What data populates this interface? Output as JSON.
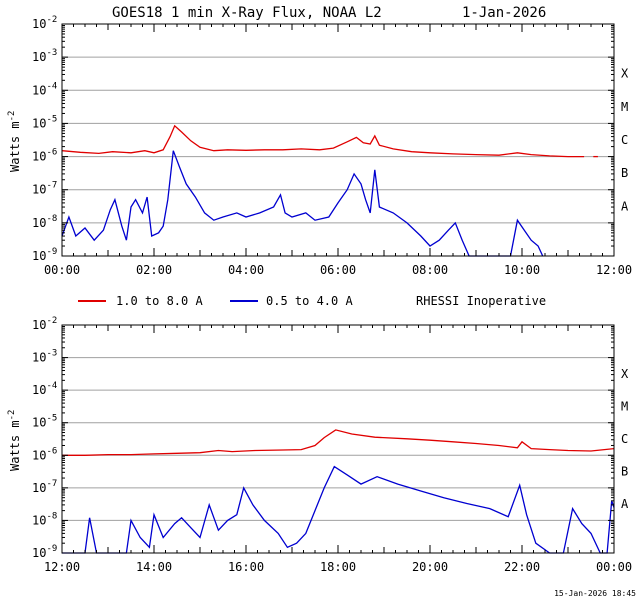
{
  "figure": {
    "title": "GOES18 1 min X-Ray Flux, NOAA L2",
    "date": "1-Jan-2026",
    "footer": "15-Jan-2026 18:45",
    "ylabel_main": "Watts m",
    "ylabel_exp": "-2",
    "legend": {
      "long_label": "1.0 to 8.0 A",
      "short_label": "0.5 to 4.0 A",
      "note": "RHESSI Inoperative"
    },
    "colors": {
      "long": "#e00000",
      "short": "#0000d0",
      "grid": "#a0a0a0",
      "frame": "#000000"
    }
  },
  "chart_data": [
    {
      "type": "line",
      "title": "GOES18 1 min X-Ray Flux, NOAA L2",
      "ylabel": "Watts m-2",
      "yscale": "log",
      "ylim": [
        1e-09,
        0.01
      ],
      "xlim": [
        0,
        12
      ],
      "x_ticks": [
        0,
        2,
        4,
        6,
        8,
        10,
        12
      ],
      "x_tick_labels": [
        "00:00",
        "02:00",
        "04:00",
        "06:00",
        "08:00",
        "10:00",
        "12:00"
      ],
      "y_tick_mantissa": [
        "10",
        "10",
        "10",
        "10",
        "10",
        "10",
        "10",
        "10"
      ],
      "y_tick_exponents": [
        "-9",
        "-8",
        "-7",
        "-6",
        "-5",
        "-4",
        "-3",
        "-2"
      ],
      "flare_classes": [
        "A",
        "B",
        "C",
        "M",
        "X"
      ],
      "grid": true,
      "series": [
        {
          "name": "1.0 to 8.0 A",
          "color": "#e00000",
          "points": [
            [
              0.0,
              1.5e-06
            ],
            [
              0.4,
              1.35e-06
            ],
            [
              0.8,
              1.25e-06
            ],
            [
              1.1,
              1.4e-06
            ],
            [
              1.5,
              1.3e-06
            ],
            [
              1.8,
              1.5e-06
            ],
            [
              2.0,
              1.3e-06
            ],
            [
              2.2,
              1.6e-06
            ],
            [
              2.35,
              4e-06
            ],
            [
              2.45,
              8.5e-06
            ],
            [
              2.6,
              5.5e-06
            ],
            [
              2.8,
              3e-06
            ],
            [
              3.0,
              1.9e-06
            ],
            [
              3.3,
              1.5e-06
            ],
            [
              3.6,
              1.6e-06
            ],
            [
              4.0,
              1.55e-06
            ],
            [
              4.4,
              1.6e-06
            ],
            [
              4.8,
              1.6e-06
            ],
            [
              5.2,
              1.7e-06
            ],
            [
              5.6,
              1.6e-06
            ],
            [
              5.9,
              1.8e-06
            ],
            [
              6.2,
              2.8e-06
            ],
            [
              6.4,
              3.8e-06
            ],
            [
              6.55,
              2.6e-06
            ],
            [
              6.7,
              2.4e-06
            ],
            [
              6.8,
              4.2e-06
            ],
            [
              6.9,
              2.2e-06
            ],
            [
              7.2,
              1.7e-06
            ],
            [
              7.6,
              1.4e-06
            ],
            [
              8.0,
              1.3e-06
            ],
            [
              8.5,
              1.2e-06
            ],
            [
              9.0,
              1.15e-06
            ],
            [
              9.5,
              1.1e-06
            ],
            [
              9.9,
              1.3e-06
            ],
            [
              10.2,
              1.15e-06
            ],
            [
              10.6,
              1.05e-06
            ],
            [
              11.0,
              1e-06
            ],
            [
              11.35,
              1e-06
            ],
            [
              11.4,
              null
            ],
            [
              11.55,
              1e-06
            ],
            [
              11.65,
              1e-06
            ]
          ]
        },
        {
          "name": "0.5 to 4.0 A",
          "color": "#0000d0",
          "points": [
            [
              0.0,
              4e-09
            ],
            [
              0.15,
              1.5e-08
            ],
            [
              0.3,
              4e-09
            ],
            [
              0.5,
              7e-09
            ],
            [
              0.7,
              3e-09
            ],
            [
              0.9,
              6e-09
            ],
            [
              1.05,
              2.5e-08
            ],
            [
              1.15,
              5e-08
            ],
            [
              1.3,
              8e-09
            ],
            [
              1.4,
              3e-09
            ],
            [
              1.5,
              3e-08
            ],
            [
              1.6,
              5e-08
            ],
            [
              1.75,
              2e-08
            ],
            [
              1.85,
              6e-08
            ],
            [
              1.95,
              4e-09
            ],
            [
              2.1,
              5e-09
            ],
            [
              2.2,
              8e-09
            ],
            [
              2.3,
              5e-08
            ],
            [
              2.42,
              1.5e-06
            ],
            [
              2.55,
              5e-07
            ],
            [
              2.7,
              1.5e-07
            ],
            [
              2.9,
              6e-08
            ],
            [
              3.1,
              2e-08
            ],
            [
              3.3,
              1.2e-08
            ],
            [
              3.5,
              1.5e-08
            ],
            [
              3.8,
              2e-08
            ],
            [
              4.0,
              1.5e-08
            ],
            [
              4.3,
              2e-08
            ],
            [
              4.6,
              3e-08
            ],
            [
              4.75,
              7e-08
            ],
            [
              4.85,
              2e-08
            ],
            [
              5.0,
              1.5e-08
            ],
            [
              5.3,
              2e-08
            ],
            [
              5.5,
              1.2e-08
            ],
            [
              5.8,
              1.5e-08
            ],
            [
              6.0,
              4e-08
            ],
            [
              6.2,
              1e-07
            ],
            [
              6.35,
              3e-07
            ],
            [
              6.5,
              1.5e-07
            ],
            [
              6.6,
              5e-08
            ],
            [
              6.7,
              2e-08
            ],
            [
              6.8,
              4e-07
            ],
            [
              6.9,
              3e-08
            ],
            [
              7.2,
              2e-08
            ],
            [
              7.5,
              1e-08
            ],
            [
              7.8,
              4e-09
            ],
            [
              8.0,
              2e-09
            ],
            [
              8.2,
              3e-09
            ],
            [
              8.4,
              6e-09
            ],
            [
              8.55,
              1e-08
            ],
            [
              8.7,
              3e-09
            ],
            [
              8.85,
              1e-09
            ],
            [
              9.0,
              1e-09
            ],
            [
              9.3,
              1e-09
            ],
            [
              9.5,
              1e-09
            ],
            [
              9.75,
              1e-09
            ],
            [
              9.9,
              1.2e-08
            ],
            [
              10.05,
              6e-09
            ],
            [
              10.2,
              3e-09
            ],
            [
              10.35,
              2e-09
            ],
            [
              10.45,
              1e-09
            ]
          ]
        }
      ]
    },
    {
      "type": "line",
      "ylabel": "Watts m-2",
      "yscale": "log",
      "ylim": [
        1e-09,
        0.01
      ],
      "xlim": [
        12,
        24
      ],
      "x_ticks": [
        12,
        14,
        16,
        18,
        20,
        22,
        24
      ],
      "x_tick_labels": [
        "12:00",
        "14:00",
        "16:00",
        "18:00",
        "20:00",
        "22:00",
        "00:00"
      ],
      "y_tick_mantissa": [
        "10",
        "10",
        "10",
        "10",
        "10",
        "10",
        "10",
        "10"
      ],
      "y_tick_exponents": [
        "-9",
        "-8",
        "-7",
        "-6",
        "-5",
        "-4",
        "-3",
        "-2"
      ],
      "flare_classes": [
        "A",
        "B",
        "C",
        "M",
        "X"
      ],
      "grid": true,
      "series": [
        {
          "name": "1.0 to 8.0 A",
          "color": "#e00000",
          "points": [
            [
              12.0,
              1e-06
            ],
            [
              12.5,
              1e-06
            ],
            [
              13.0,
              1.05e-06
            ],
            [
              13.5,
              1.05e-06
            ],
            [
              14.0,
              1.1e-06
            ],
            [
              14.5,
              1.15e-06
            ],
            [
              15.0,
              1.2e-06
            ],
            [
              15.4,
              1.4e-06
            ],
            [
              15.7,
              1.3e-06
            ],
            [
              16.2,
              1.4e-06
            ],
            [
              16.8,
              1.45e-06
            ],
            [
              17.2,
              1.5e-06
            ],
            [
              17.5,
              2e-06
            ],
            [
              17.7,
              3.5e-06
            ],
            [
              17.95,
              6e-06
            ],
            [
              18.3,
              4.5e-06
            ],
            [
              18.8,
              3.6e-06
            ],
            [
              19.5,
              3.2e-06
            ],
            [
              20.0,
              2.9e-06
            ],
            [
              20.5,
              2.6e-06
            ],
            [
              21.0,
              2.3e-06
            ],
            [
              21.5,
              2e-06
            ],
            [
              21.9,
              1.7e-06
            ],
            [
              22.0,
              2.6e-06
            ],
            [
              22.2,
              1.6e-06
            ],
            [
              22.6,
              1.5e-06
            ],
            [
              23.0,
              1.4e-06
            ],
            [
              23.5,
              1.35e-06
            ],
            [
              24.0,
              1.6e-06
            ]
          ]
        },
        {
          "name": "0.5 to 4.0 A",
          "color": "#0000d0",
          "points": [
            [
              12.0,
              1e-09
            ],
            [
              12.5,
              1e-09
            ],
            [
              12.6,
              1.2e-08
            ],
            [
              12.75,
              1e-09
            ],
            [
              13.0,
              1e-09
            ],
            [
              13.4,
              1e-09
            ],
            [
              13.5,
              1e-08
            ],
            [
              13.7,
              3e-09
            ],
            [
              13.9,
              1.5e-09
            ],
            [
              14.0,
              1.5e-08
            ],
            [
              14.2,
              3e-09
            ],
            [
              14.45,
              8e-09
            ],
            [
              14.6,
              1.2e-08
            ],
            [
              14.8,
              6e-09
            ],
            [
              15.0,
              3e-09
            ],
            [
              15.2,
              3e-08
            ],
            [
              15.4,
              5e-09
            ],
            [
              15.6,
              1e-08
            ],
            [
              15.8,
              1.5e-08
            ],
            [
              15.95,
              1e-07
            ],
            [
              16.15,
              3e-08
            ],
            [
              16.4,
              1e-08
            ],
            [
              16.7,
              4e-09
            ],
            [
              16.9,
              1.5e-09
            ],
            [
              17.1,
              2e-09
            ],
            [
              17.3,
              4e-09
            ],
            [
              17.5,
              2e-08
            ],
            [
              17.7,
              1e-07
            ],
            [
              17.92,
              4.5e-07
            ],
            [
              18.2,
              2.5e-07
            ],
            [
              18.5,
              1.3e-07
            ],
            [
              18.85,
              2.2e-07
            ],
            [
              19.3,
              1.3e-07
            ],
            [
              19.8,
              8e-08
            ],
            [
              20.3,
              5e-08
            ],
            [
              20.8,
              3.3e-08
            ],
            [
              21.3,
              2.3e-08
            ],
            [
              21.7,
              1.3e-08
            ],
            [
              21.95,
              1.2e-07
            ],
            [
              22.1,
              1.5e-08
            ],
            [
              22.3,
              2e-09
            ],
            [
              22.6,
              1e-09
            ],
            [
              22.9,
              1e-09
            ],
            [
              23.1,
              2.3e-08
            ],
            [
              23.3,
              8e-09
            ],
            [
              23.5,
              4e-09
            ],
            [
              23.7,
              1e-09
            ],
            [
              23.85,
              1e-09
            ],
            [
              23.95,
              4e-08
            ],
            [
              24.0,
              2.5e-08
            ]
          ]
        }
      ]
    }
  ]
}
